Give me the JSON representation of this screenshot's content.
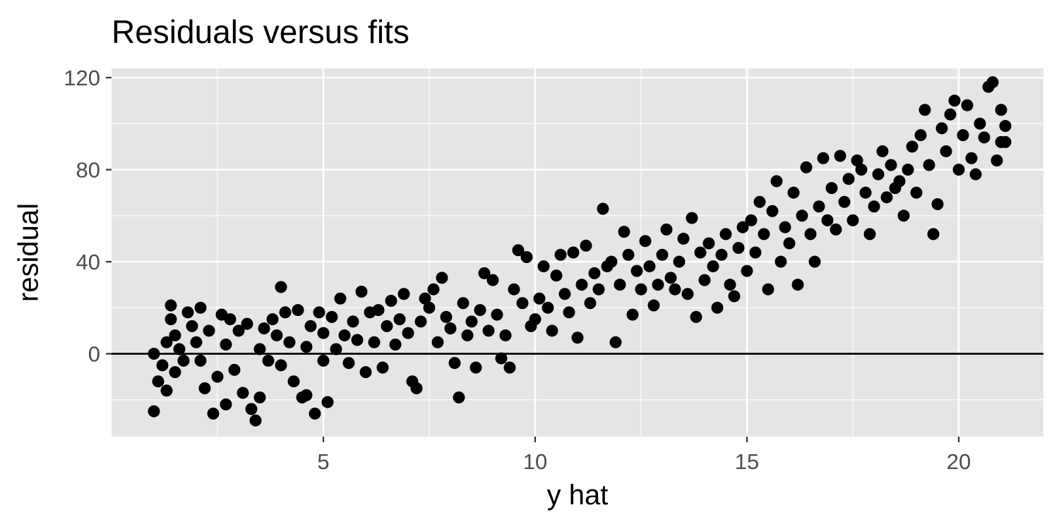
{
  "chart_data": {
    "type": "scatter",
    "title": "Residuals versus fits",
    "xlabel": "y hat",
    "ylabel": "residual",
    "xlim": [
      0,
      22
    ],
    "ylim": [
      -36,
      124
    ],
    "x_ticks": [
      5,
      10,
      15,
      20
    ],
    "x_tick_labels": [
      "5",
      "10",
      "15",
      "20"
    ],
    "y_ticks": [
      0,
      40,
      80,
      120
    ],
    "y_tick_labels": [
      "0",
      "40",
      "80",
      "120"
    ],
    "x_minor": [
      2.5,
      7.5,
      12.5,
      17.5
    ],
    "y_minor": [
      -20,
      20,
      60,
      100
    ],
    "reference_line_y": 0,
    "panel_background": "#e5e5e5",
    "grid": true,
    "point_color": "#000000",
    "points": [
      [
        1.0,
        -25
      ],
      [
        1.0,
        0
      ],
      [
        1.1,
        -12
      ],
      [
        1.2,
        -5
      ],
      [
        1.3,
        -16
      ],
      [
        1.3,
        5
      ],
      [
        1.4,
        21
      ],
      [
        1.4,
        15
      ],
      [
        1.5,
        8
      ],
      [
        1.5,
        -8
      ],
      [
        1.6,
        2
      ],
      [
        1.7,
        -3
      ],
      [
        1.8,
        18
      ],
      [
        1.9,
        12
      ],
      [
        2.0,
        5
      ],
      [
        2.1,
        20
      ],
      [
        2.1,
        -3
      ],
      [
        2.2,
        -15
      ],
      [
        2.3,
        10
      ],
      [
        2.4,
        -26
      ],
      [
        2.5,
        -10
      ],
      [
        2.6,
        17
      ],
      [
        2.7,
        -22
      ],
      [
        2.7,
        4
      ],
      [
        2.8,
        15
      ],
      [
        2.9,
        -7
      ],
      [
        3.0,
        10
      ],
      [
        3.1,
        -17
      ],
      [
        3.2,
        13
      ],
      [
        3.3,
        -24
      ],
      [
        3.4,
        -29
      ],
      [
        3.5,
        -19
      ],
      [
        3.5,
        2
      ],
      [
        3.6,
        11
      ],
      [
        3.7,
        -3
      ],
      [
        3.8,
        15
      ],
      [
        3.9,
        8
      ],
      [
        4.0,
        -5
      ],
      [
        4.0,
        29
      ],
      [
        4.1,
        18
      ],
      [
        4.2,
        5
      ],
      [
        4.3,
        -12
      ],
      [
        4.4,
        19
      ],
      [
        4.5,
        -19
      ],
      [
        4.6,
        -18
      ],
      [
        4.6,
        3
      ],
      [
        4.7,
        12
      ],
      [
        4.8,
        -26
      ],
      [
        4.9,
        18
      ],
      [
        5.0,
        9
      ],
      [
        5.0,
        -3
      ],
      [
        5.1,
        -21
      ],
      [
        5.2,
        16
      ],
      [
        5.3,
        2
      ],
      [
        5.4,
        24
      ],
      [
        5.5,
        8
      ],
      [
        5.6,
        -4
      ],
      [
        5.7,
        14
      ],
      [
        5.8,
        6
      ],
      [
        5.9,
        27
      ],
      [
        6.0,
        -8
      ],
      [
        6.1,
        18
      ],
      [
        6.2,
        5
      ],
      [
        6.3,
        19
      ],
      [
        6.4,
        -6
      ],
      [
        6.5,
        12
      ],
      [
        6.6,
        23
      ],
      [
        6.7,
        4
      ],
      [
        6.8,
        15
      ],
      [
        6.9,
        26
      ],
      [
        7.0,
        9
      ],
      [
        7.1,
        -12
      ],
      [
        7.2,
        -15
      ],
      [
        7.3,
        14
      ],
      [
        7.4,
        24
      ],
      [
        7.5,
        20
      ],
      [
        7.6,
        28
      ],
      [
        7.7,
        5
      ],
      [
        7.8,
        33
      ],
      [
        7.9,
        16
      ],
      [
        8.0,
        11
      ],
      [
        8.1,
        -4
      ],
      [
        8.2,
        -19
      ],
      [
        8.3,
        22
      ],
      [
        8.4,
        8
      ],
      [
        8.5,
        14
      ],
      [
        8.6,
        -6
      ],
      [
        8.7,
        19
      ],
      [
        8.8,
        35
      ],
      [
        8.9,
        10
      ],
      [
        9.0,
        32
      ],
      [
        9.1,
        17
      ],
      [
        9.2,
        -2
      ],
      [
        9.3,
        8
      ],
      [
        9.4,
        -6
      ],
      [
        9.5,
        28
      ],
      [
        9.6,
        45
      ],
      [
        9.7,
        22
      ],
      [
        9.8,
        42
      ],
      [
        9.9,
        12
      ],
      [
        10.0,
        15
      ],
      [
        10.1,
        24
      ],
      [
        10.2,
        38
      ],
      [
        10.3,
        20
      ],
      [
        10.4,
        10
      ],
      [
        10.5,
        34
      ],
      [
        10.6,
        43
      ],
      [
        10.7,
        26
      ],
      [
        10.8,
        18
      ],
      [
        10.9,
        44
      ],
      [
        11.0,
        7
      ],
      [
        11.1,
        30
      ],
      [
        11.2,
        47
      ],
      [
        11.3,
        22
      ],
      [
        11.4,
        35
      ],
      [
        11.5,
        28
      ],
      [
        11.6,
        63
      ],
      [
        11.7,
        38
      ],
      [
        11.8,
        40
      ],
      [
        11.9,
        5
      ],
      [
        12.0,
        30
      ],
      [
        12.1,
        53
      ],
      [
        12.2,
        43
      ],
      [
        12.3,
        17
      ],
      [
        12.4,
        36
      ],
      [
        12.5,
        28
      ],
      [
        12.6,
        49
      ],
      [
        12.7,
        38
      ],
      [
        12.8,
        21
      ],
      [
        12.9,
        30
      ],
      [
        13.0,
        43
      ],
      [
        13.1,
        54
      ],
      [
        13.2,
        33
      ],
      [
        13.3,
        28
      ],
      [
        13.4,
        40
      ],
      [
        13.5,
        50
      ],
      [
        13.6,
        26
      ],
      [
        13.7,
        59
      ],
      [
        13.8,
        16
      ],
      [
        13.9,
        44
      ],
      [
        14.0,
        32
      ],
      [
        14.1,
        48
      ],
      [
        14.2,
        38
      ],
      [
        14.3,
        20
      ],
      [
        14.4,
        43
      ],
      [
        14.5,
        52
      ],
      [
        14.6,
        30
      ],
      [
        14.7,
        25
      ],
      [
        14.8,
        46
      ],
      [
        14.9,
        55
      ],
      [
        15.0,
        36
      ],
      [
        15.1,
        58
      ],
      [
        15.2,
        44
      ],
      [
        15.3,
        66
      ],
      [
        15.4,
        52
      ],
      [
        15.5,
        28
      ],
      [
        15.6,
        62
      ],
      [
        15.7,
        75
      ],
      [
        15.8,
        40
      ],
      [
        15.9,
        55
      ],
      [
        16.0,
        48
      ],
      [
        16.1,
        70
      ],
      [
        16.2,
        30
      ],
      [
        16.3,
        60
      ],
      [
        16.4,
        81
      ],
      [
        16.5,
        52
      ],
      [
        16.6,
        40
      ],
      [
        16.7,
        64
      ],
      [
        16.8,
        85
      ],
      [
        16.9,
        58
      ],
      [
        17.0,
        72
      ],
      [
        17.1,
        54
      ],
      [
        17.2,
        86
      ],
      [
        17.3,
        66
      ],
      [
        17.4,
        76
      ],
      [
        17.5,
        58
      ],
      [
        17.6,
        84
      ],
      [
        17.7,
        80
      ],
      [
        17.8,
        70
      ],
      [
        17.9,
        52
      ],
      [
        18.0,
        64
      ],
      [
        18.1,
        78
      ],
      [
        18.2,
        88
      ],
      [
        18.3,
        68
      ],
      [
        18.4,
        82
      ],
      [
        18.5,
        72
      ],
      [
        18.6,
        75
      ],
      [
        18.7,
        60
      ],
      [
        18.8,
        80
      ],
      [
        18.9,
        90
      ],
      [
        19.0,
        70
      ],
      [
        19.1,
        95
      ],
      [
        19.2,
        106
      ],
      [
        19.3,
        82
      ],
      [
        19.4,
        52
      ],
      [
        19.5,
        65
      ],
      [
        19.6,
        98
      ],
      [
        19.7,
        88
      ],
      [
        19.8,
        104
      ],
      [
        19.9,
        110
      ],
      [
        20.0,
        80
      ],
      [
        20.1,
        95
      ],
      [
        20.2,
        108
      ],
      [
        20.3,
        85
      ],
      [
        20.4,
        78
      ],
      [
        20.5,
        100
      ],
      [
        20.6,
        94
      ],
      [
        20.7,
        116
      ],
      [
        20.8,
        118
      ],
      [
        20.9,
        84
      ],
      [
        21.0,
        92
      ],
      [
        21.0,
        106
      ],
      [
        21.1,
        99
      ],
      [
        21.1,
        92
      ]
    ]
  }
}
